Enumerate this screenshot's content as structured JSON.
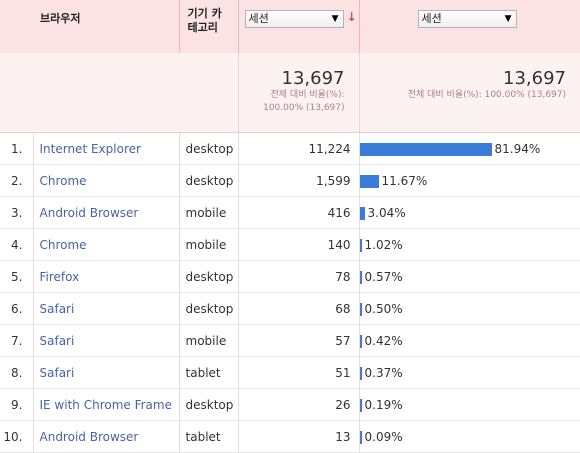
{
  "header": {
    "browser_label": "브라우저",
    "device_label_1": "기기 카",
    "device_label_2": "테고리",
    "metric_select": "세션",
    "compare_select": "세션",
    "sort_arrow": "↓",
    "dropdown_arrow": "▼"
  },
  "totals": {
    "metric_value": "13,697",
    "metric_sub_1": "전체 대비 비율(%):",
    "metric_sub_2": "100.00% (13,697)",
    "compare_value": "13,697",
    "compare_sub": "전체 대비 비율(%): 100.00% (13,697)"
  },
  "rows": [
    {
      "idx": "1.",
      "browser": "Internet Explorer",
      "device": "desktop",
      "sessions": "11,224",
      "pct": "81.94%",
      "fraction": 0.8194
    },
    {
      "idx": "2.",
      "browser": "Chrome",
      "device": "desktop",
      "sessions": "1,599",
      "pct": "11.67%",
      "fraction": 0.1167
    },
    {
      "idx": "3.",
      "browser": "Android Browser",
      "device": "mobile",
      "sessions": "416",
      "pct": "3.04%",
      "fraction": 0.0304
    },
    {
      "idx": "4.",
      "browser": "Chrome",
      "device": "mobile",
      "sessions": "140",
      "pct": "1.02%",
      "fraction": 0.0102
    },
    {
      "idx": "5.",
      "browser": "Firefox",
      "device": "desktop",
      "sessions": "78",
      "pct": "0.57%",
      "fraction": 0.0057
    },
    {
      "idx": "6.",
      "browser": "Safari",
      "device": "desktop",
      "sessions": "68",
      "pct": "0.50%",
      "fraction": 0.005
    },
    {
      "idx": "7.",
      "browser": "Safari",
      "device": "mobile",
      "sessions": "57",
      "pct": "0.42%",
      "fraction": 0.0042
    },
    {
      "idx": "8.",
      "browser": "Safari",
      "device": "tablet",
      "sessions": "51",
      "pct": "0.37%",
      "fraction": 0.0037
    },
    {
      "idx": "9.",
      "browser": "IE with Chrome Frame",
      "device": "desktop",
      "sessions": "26",
      "pct": "0.19%",
      "fraction": 0.0019
    },
    {
      "idx": "10.",
      "browser": "Android Browser",
      "device": "tablet",
      "sessions": "13",
      "pct": "0.09%",
      "fraction": 0.0009
    }
  ],
  "colors": {
    "bar": "#3a7dd8",
    "link": "#4863a8",
    "header_bg": "#fbe3e3"
  }
}
